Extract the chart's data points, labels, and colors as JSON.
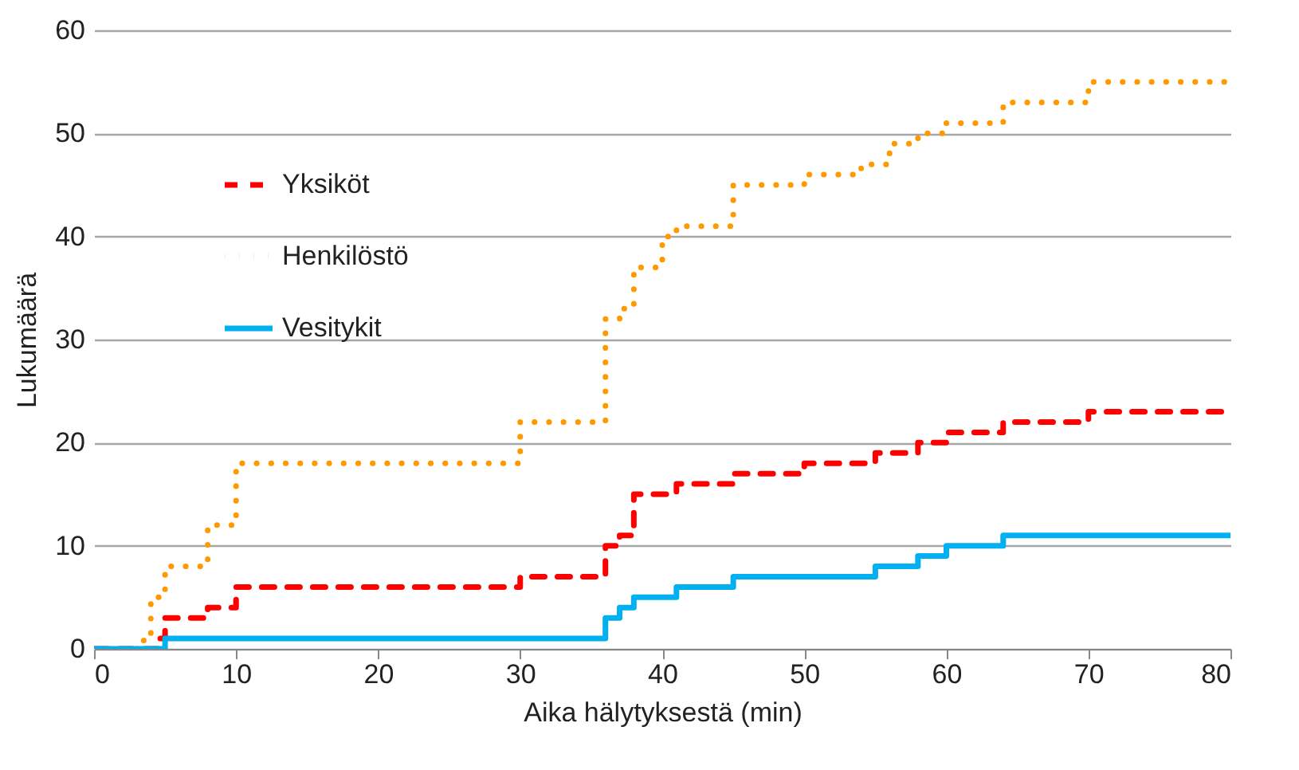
{
  "chart_data": {
    "type": "step",
    "xlabel": "Aika hälytyksestä (min)",
    "ylabel": "Lukumäärä",
    "xlim": [
      0,
      80
    ],
    "xticks": [
      0,
      10,
      20,
      30,
      40,
      50,
      60,
      70,
      80
    ],
    "ylim": [
      0,
      60
    ],
    "yticks": [
      0,
      10,
      20,
      30,
      40,
      50,
      60
    ],
    "grid": "y",
    "legend": "top left",
    "series": [
      {
        "name": "Yksiköt",
        "color": "#ff0000",
        "line_style": "dashed",
        "x": [
          0,
          4.5,
          5,
          8,
          10,
          30,
          36,
          37,
          38,
          41,
          45,
          50,
          55,
          58,
          60,
          64,
          70,
          80
        ],
        "values": [
          0,
          1,
          3,
          4,
          6,
          7,
          10,
          11,
          15,
          16,
          17,
          18,
          19,
          20,
          21,
          22,
          23,
          23
        ]
      },
      {
        "name": "Henkilöstö",
        "color": "#ff9900",
        "line_style": "dotted",
        "x": [
          0,
          3.5,
          4,
          5,
          8,
          10,
          30,
          36,
          37,
          38,
          40,
          41,
          45,
          50,
          54,
          56,
          58,
          60,
          64,
          70,
          80
        ],
        "values": [
          0,
          1,
          5,
          8,
          12,
          18,
          22,
          32,
          33,
          37,
          40,
          41,
          45,
          46,
          47,
          49,
          50,
          51,
          53,
          55,
          55
        ]
      },
      {
        "name": "Vesitykit",
        "color": "#00b0f0",
        "line_style": "solid",
        "x": [
          0,
          5,
          36,
          37,
          38,
          41,
          45,
          55,
          58,
          60,
          64,
          80
        ],
        "values": [
          0,
          1,
          3,
          4,
          5,
          6,
          7,
          8,
          9,
          10,
          11,
          11
        ]
      }
    ]
  }
}
